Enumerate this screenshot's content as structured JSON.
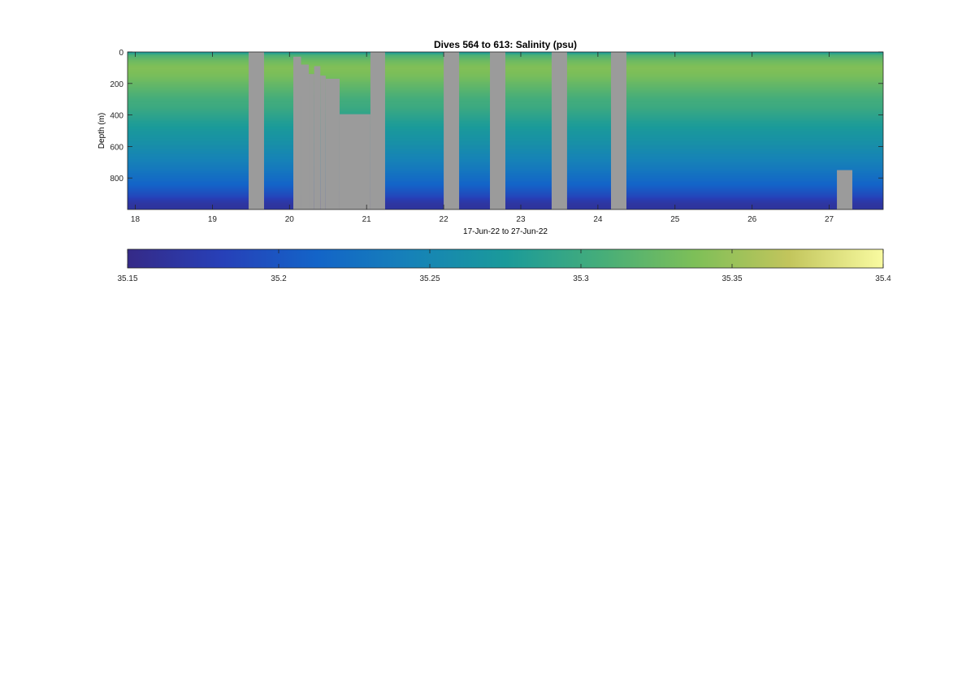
{
  "chart_data": [
    {
      "type": "heatmap",
      "title": "Dives 564 to 613: Salinity (psu)",
      "xlabel": "17-Jun-22 to 27-Jun-22",
      "ylabel": "Depth (m)",
      "x_unit": "day of June 2022",
      "xlim": [
        17.9,
        27.7
      ],
      "ylim": [
        0,
        1000
      ],
      "y_reversed": true,
      "x_ticks": [
        18,
        19,
        20,
        21,
        22,
        23,
        24,
        25,
        26,
        27
      ],
      "y_ticks": [
        0,
        200,
        400,
        600,
        800
      ],
      "grid": false,
      "colormap": "parula-like (dark blue to teal to green to pale yellow)",
      "missing_color": "#9b9b9b",
      "salinity_profile": {
        "depth_m": [
          0,
          20,
          60,
          100,
          150,
          200,
          250,
          300,
          350,
          400,
          450,
          500,
          550,
          600,
          650,
          700,
          750,
          800,
          850,
          880,
          910,
          940,
          970
        ],
        "salinity_psu": [
          35.27,
          35.31,
          35.33,
          35.34,
          35.335,
          35.325,
          35.315,
          35.305,
          35.3,
          35.29,
          35.28,
          35.272,
          35.265,
          35.258,
          35.25,
          35.242,
          35.232,
          35.222,
          35.21,
          35.2,
          35.19,
          35.175,
          35.165
        ]
      },
      "data_gaps": [
        {
          "x_start": 19.47,
          "x_end": 19.67,
          "depth_from": 0
        },
        {
          "x_start": 20.05,
          "x_end": 20.15,
          "depth_from": 30
        },
        {
          "x_start": 20.15,
          "x_end": 20.25,
          "depth_from": 80
        },
        {
          "x_start": 20.25,
          "x_end": 20.32,
          "depth_from": 140
        },
        {
          "x_start": 20.32,
          "x_end": 20.4,
          "depth_from": 90
        },
        {
          "x_start": 20.4,
          "x_end": 20.47,
          "depth_from": 150
        },
        {
          "x_start": 20.47,
          "x_end": 20.65,
          "depth_from": 170
        },
        {
          "x_start": 20.65,
          "x_end": 21.05,
          "depth_from": 395
        },
        {
          "x_start": 21.05,
          "x_end": 21.24,
          "depth_from": 0
        },
        {
          "x_start": 22.0,
          "x_end": 22.2,
          "depth_from": 0
        },
        {
          "x_start": 22.6,
          "x_end": 22.8,
          "depth_from": 0
        },
        {
          "x_start": 23.4,
          "x_end": 23.6,
          "depth_from": 0
        },
        {
          "x_start": 24.17,
          "x_end": 24.37,
          "depth_from": 0
        },
        {
          "x_start": 27.1,
          "x_end": 27.3,
          "depth_from": 750
        }
      ],
      "colorbar": {
        "min": 35.15,
        "max": 35.4,
        "tick_labels": [
          "35.15",
          "35.2",
          "35.25",
          "35.3",
          "35.35",
          "35.4"
        ],
        "tick_values": [
          35.15,
          35.2,
          35.25,
          35.3,
          35.35,
          35.4
        ]
      }
    }
  ]
}
